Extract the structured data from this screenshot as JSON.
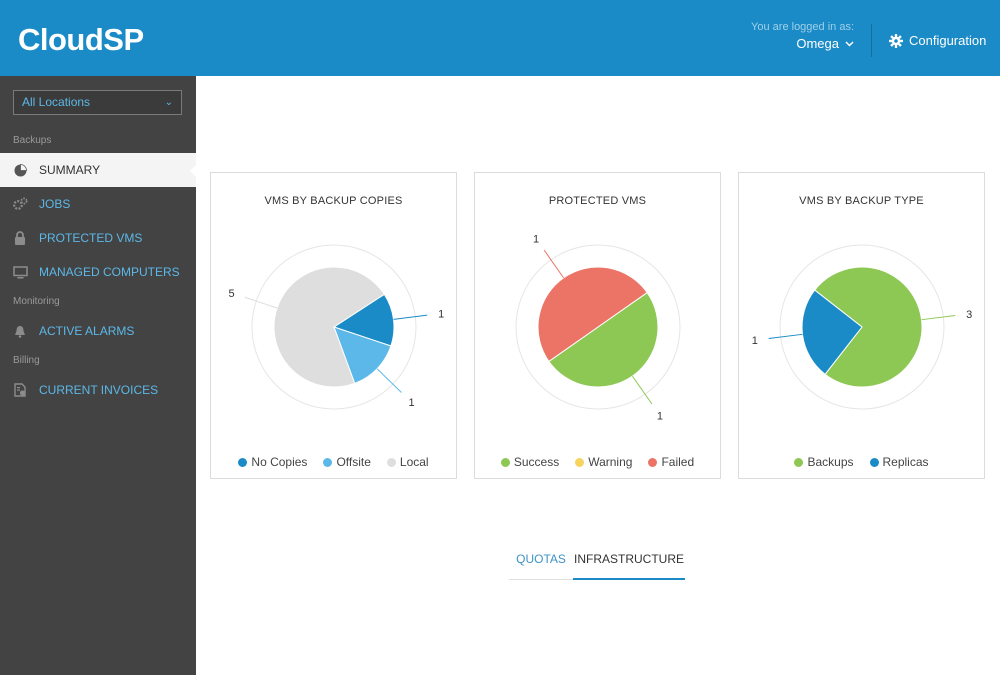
{
  "header": {
    "logo": "CloudSP",
    "login_caption": "You are logged in as:",
    "user": "Omega",
    "config_label": "Configuration"
  },
  "sidebar": {
    "location_select": "All Locations",
    "sections": [
      "Backups",
      "Monitoring",
      "Billing"
    ],
    "items": [
      {
        "label": "SUMMARY",
        "icon": "pie-chart-icon",
        "active": true
      },
      {
        "label": "JOBS",
        "icon": "gears-icon"
      },
      {
        "label": "PROTECTED VMS",
        "icon": "lock-icon"
      },
      {
        "label": "MANAGED COMPUTERS",
        "icon": "monitor-icon"
      },
      {
        "label": "ACTIVE ALARMS",
        "icon": "bell-icon"
      },
      {
        "label": "CURRENT INVOICES",
        "icon": "invoice-icon"
      }
    ]
  },
  "chart_data": [
    {
      "type": "pie",
      "title": "VMS BY BACKUP COPIES",
      "labels": [
        "No Copies",
        "Offsite",
        "Local"
      ],
      "values": [
        1,
        1,
        5
      ],
      "colors": [
        "#1a8bc6",
        "#5cb8e8",
        "#dedede"
      ],
      "legend": "bottom"
    },
    {
      "type": "pie",
      "title": "PROTECTED VMS",
      "labels": [
        "Success",
        "Warning",
        "Failed"
      ],
      "values": [
        1,
        0,
        1
      ],
      "colors": [
        "#8dc855",
        "#f5d55f",
        "#ec7467"
      ],
      "legend": "bottom"
    },
    {
      "type": "pie",
      "title": "VMS BY BACKUP TYPE",
      "labels": [
        "Backups",
        "Replicas"
      ],
      "values": [
        3,
        1
      ],
      "colors": [
        "#8dc855",
        "#1a8bc6"
      ],
      "legend": "bottom"
    }
  ],
  "tabs": {
    "quotas": "QUOTAS",
    "infrastructure": "INFRASTRUCTURE"
  }
}
